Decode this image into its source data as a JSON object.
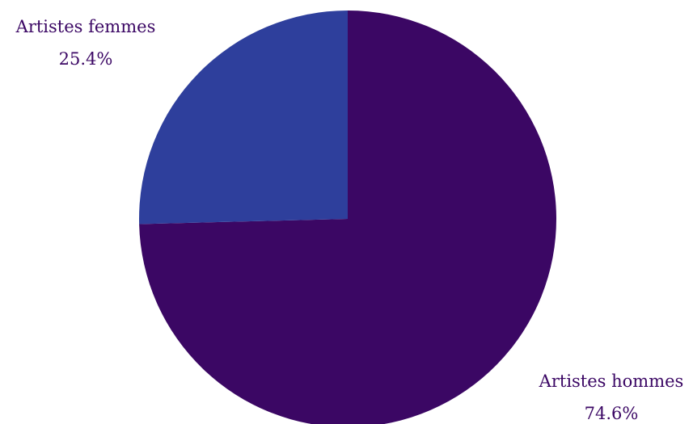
{
  "chart_data": {
    "type": "pie",
    "title": "",
    "start_angle_deg": 0,
    "direction": "clockwise",
    "slices": [
      {
        "label": "Artistes hommes",
        "value": 74.6,
        "value_label": "74.6%",
        "color": "#3b0764"
      },
      {
        "label": "Artistes femmes",
        "value": 25.4,
        "value_label": "25.4%",
        "color": "#2e3f9c"
      }
    ],
    "label_color": "#3b0764"
  }
}
